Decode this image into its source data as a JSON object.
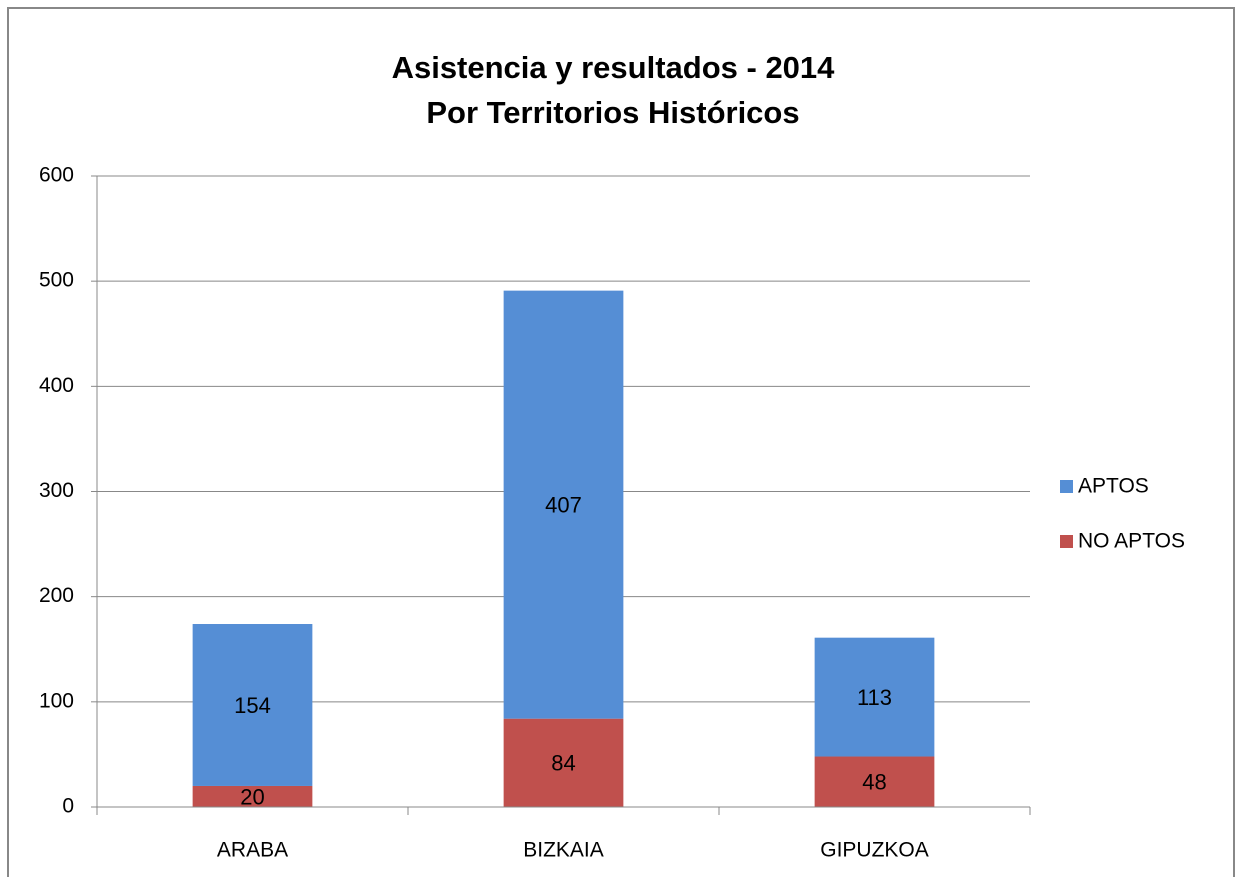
{
  "chart_data": {
    "type": "stacked_bar",
    "title": "Asistencia y resultados - 2014",
    "subtitle": "Por Territorios Históricos",
    "categories": [
      "ARABA",
      "BIZKAIA",
      "GIPUZKOA"
    ],
    "series": [
      {
        "name": "NO APTOS",
        "color": "#c0504d",
        "values": [
          20,
          84,
          48
        ]
      },
      {
        "name": "APTOS",
        "color": "#558ed5",
        "values": [
          154,
          407,
          113
        ]
      }
    ],
    "ylim": [
      0,
      600
    ],
    "yticks": [
      0,
      100,
      200,
      300,
      400,
      500,
      600
    ],
    "grid": true,
    "legend": "right"
  }
}
